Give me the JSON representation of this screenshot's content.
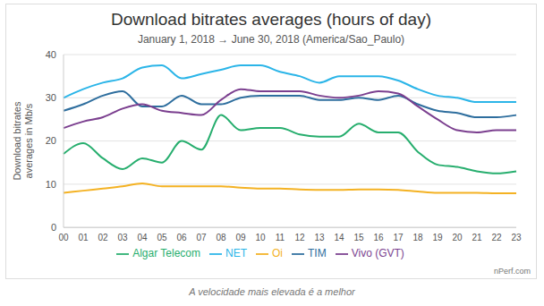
{
  "chart_data": {
    "type": "line",
    "title": "Download bitrates averages (hours of day)",
    "subtitle": "January 1, 2018 → June 30, 2018 (America/Sao_Paulo)",
    "y_label": "Download bitrates averages in Mb/s",
    "annotations": [
      "nPerf.com"
    ],
    "caption": "A velocidade mais elevada é a melhor",
    "categories": [
      "00",
      "01",
      "02",
      "03",
      "04",
      "05",
      "06",
      "07",
      "08",
      "09",
      "10",
      "11",
      "12",
      "13",
      "14",
      "15",
      "16",
      "17",
      "18",
      "19",
      "20",
      "21",
      "22",
      "23"
    ],
    "series": [
      {
        "name": "Algar Telecom",
        "color": "#27ae6e",
        "values": [
          17,
          19.5,
          16,
          13.5,
          16,
          15,
          20,
          18,
          26,
          22.5,
          23,
          23,
          21.5,
          21,
          21,
          24,
          22,
          22,
          17.5,
          14.5,
          14,
          13,
          12.5,
          13
        ]
      },
      {
        "name": "NET",
        "color": "#2bb5e8",
        "values": [
          30,
          32,
          33.5,
          34.5,
          37,
          37.5,
          34.5,
          35.5,
          36.5,
          37.5,
          37.5,
          36,
          35,
          33.5,
          35,
          35,
          35,
          34,
          32,
          30.5,
          30,
          29,
          29,
          29
        ]
      },
      {
        "name": "Oi",
        "color": "#f4b223",
        "values": [
          8,
          8.5,
          9,
          9.5,
          10.2,
          9.5,
          9.5,
          9.5,
          9.5,
          9.2,
          9,
          9,
          8.8,
          8.7,
          8.7,
          8.8,
          8.8,
          8.7,
          8.3,
          8,
          8,
          8,
          7.9,
          7.9
        ]
      },
      {
        "name": "TIM",
        "color": "#2e6e9e",
        "values": [
          27,
          28.5,
          30.5,
          31.5,
          28,
          28,
          30.5,
          28.5,
          28.5,
          30,
          30.5,
          30.5,
          30.5,
          29.5,
          29.5,
          30,
          29.5,
          30.5,
          28.5,
          27,
          26.5,
          25.5,
          25.5,
          26
        ]
      },
      {
        "name": "Vivo (GVT)",
        "color": "#7b3f8f",
        "values": [
          23,
          24.5,
          25.5,
          27.5,
          28.5,
          27,
          26.5,
          26,
          29.5,
          32,
          31.5,
          31.5,
          31.5,
          30.5,
          30,
          30.5,
          31.5,
          31,
          28,
          25,
          22.5,
          22,
          22.5,
          22.5
        ]
      }
    ],
    "ylim": [
      0,
      40
    ],
    "yticks": [
      0,
      10,
      20,
      30,
      40
    ],
    "grid": true,
    "legend": "bottom"
  }
}
